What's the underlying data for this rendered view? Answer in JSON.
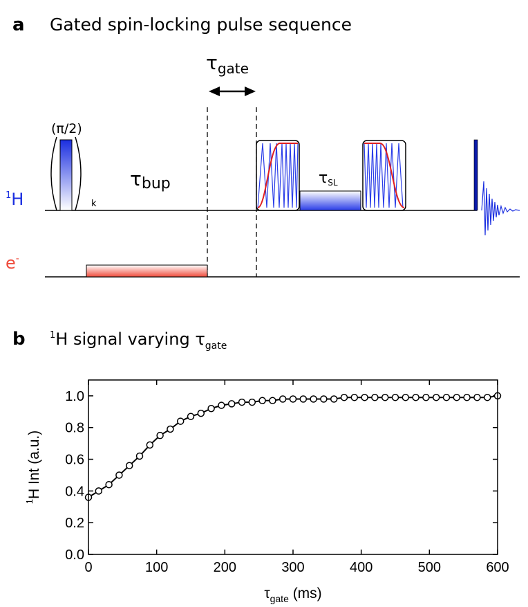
{
  "panel_a": {
    "label": "a",
    "title": "Gated spin-locking pulse sequence",
    "tau_gate": {
      "symbol": "τ",
      "sub": "gate"
    },
    "pulse_label": "(π/2)",
    "tau_bup": {
      "symbol": "τ",
      "sub": "bup"
    },
    "k_label": "k",
    "tau_sl": {
      "symbol": "τ",
      "sub": "SL"
    },
    "h_channel": {
      "sup": "1",
      "text": "H"
    },
    "e_channel": {
      "text": "e",
      "sup": "-"
    }
  },
  "panel_b": {
    "label": "b",
    "title": {
      "sup": "1",
      "text": "H signal varying ",
      "symbol": "τ",
      "sub": "gate"
    }
  },
  "chart_data": {
    "type": "line",
    "xlabel": {
      "symbol": "τ",
      "sub": "gate",
      "text": " (ms)"
    },
    "ylabel": {
      "sup": "1",
      "text": "H Int (a.u.)"
    },
    "x": [
      0,
      15,
      30,
      45,
      60,
      75,
      90,
      105,
      120,
      135,
      150,
      165,
      180,
      195,
      210,
      225,
      240,
      255,
      270,
      285,
      300,
      315,
      330,
      345,
      360,
      375,
      390,
      405,
      420,
      435,
      450,
      465,
      480,
      495,
      510,
      525,
      540,
      555,
      570,
      585,
      600
    ],
    "series": [
      {
        "color": "#000000",
        "markers": true,
        "values": [
          0.36,
          0.4,
          0.44,
          0.5,
          0.56,
          0.62,
          0.69,
          0.75,
          0.79,
          0.84,
          0.87,
          0.89,
          0.92,
          0.94,
          0.95,
          0.96,
          0.96,
          0.97,
          0.97,
          0.98,
          0.98,
          0.98,
          0.98,
          0.98,
          0.98,
          0.99,
          0.99,
          0.99,
          0.99,
          0.99,
          0.99,
          0.99,
          0.99,
          0.99,
          0.99,
          0.99,
          0.99,
          0.99,
          0.99,
          0.99,
          1.0
        ]
      }
    ],
    "xlim": [
      0,
      600
    ],
    "ylim": [
      0,
      1.1
    ],
    "xticks": [
      0,
      100,
      200,
      300,
      400,
      500,
      600
    ],
    "yticks": [
      {
        "value": 0,
        "label": "0.0"
      },
      0.2,
      0.4,
      0.6,
      0.8,
      {
        "value": 1,
        "label": "1.0"
      }
    ]
  }
}
